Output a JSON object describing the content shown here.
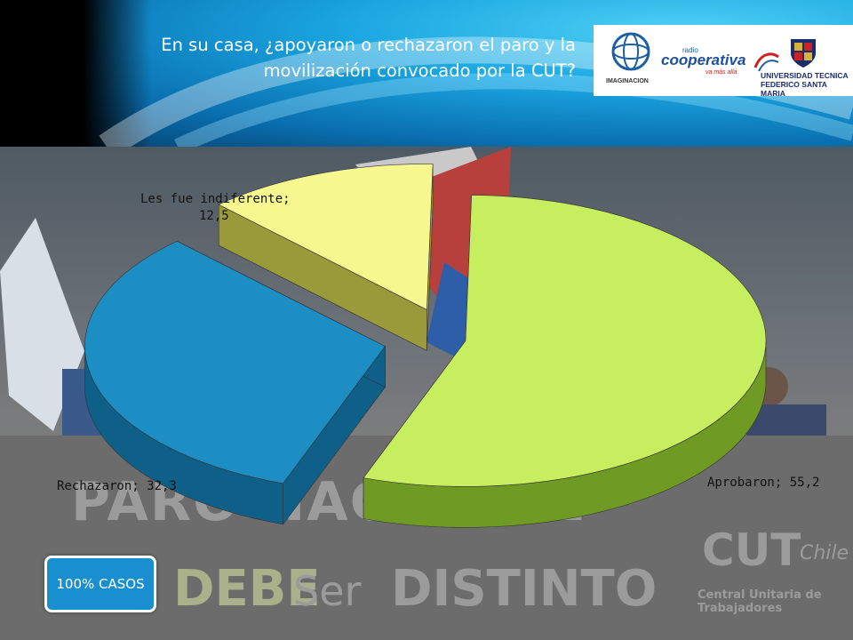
{
  "header": {
    "title_line1": "En su casa, ¿apoyaron o rechazaron el paro y la",
    "title_line2": "movilización convocado por la CUT?"
  },
  "logos": {
    "imaginacion": "IMAGINACION",
    "cooperativa_small": "radio",
    "cooperativa": "cooperativa",
    "cooperativa_tag": "va más allá",
    "utfsm_line1": "UNIVERSIDAD TECNICA",
    "utfsm_line2": "FEDERICO SANTA MARIA"
  },
  "background_banner": {
    "line1": "PARO NACIONAL",
    "line2": "DEBE",
    "line3": "Ser",
    "line4": "DISTINTO",
    "logo": "CUT",
    "logo_suffix": "Chile",
    "subtitle": "Central Unitaria de Trabajadores"
  },
  "cases_badge": "100% CASOS",
  "chart_data": {
    "type": "pie",
    "style": "3d-exploded",
    "categories": [
      "Aprobaron",
      "Rechazaron",
      "Les fue indiferente"
    ],
    "values": [
      55.2,
      32.3,
      12.5
    ],
    "labels": [
      "Aprobaron; 55,2",
      "Rechazaron; 32,3",
      "Les fue indiferente; 12,5"
    ],
    "colors": [
      "#c6ee5f",
      "#1c8ec4",
      "#f6f78f"
    ],
    "side_colors": [
      "#6f9a23",
      "#0e6089",
      "#9a9a3a"
    ]
  }
}
